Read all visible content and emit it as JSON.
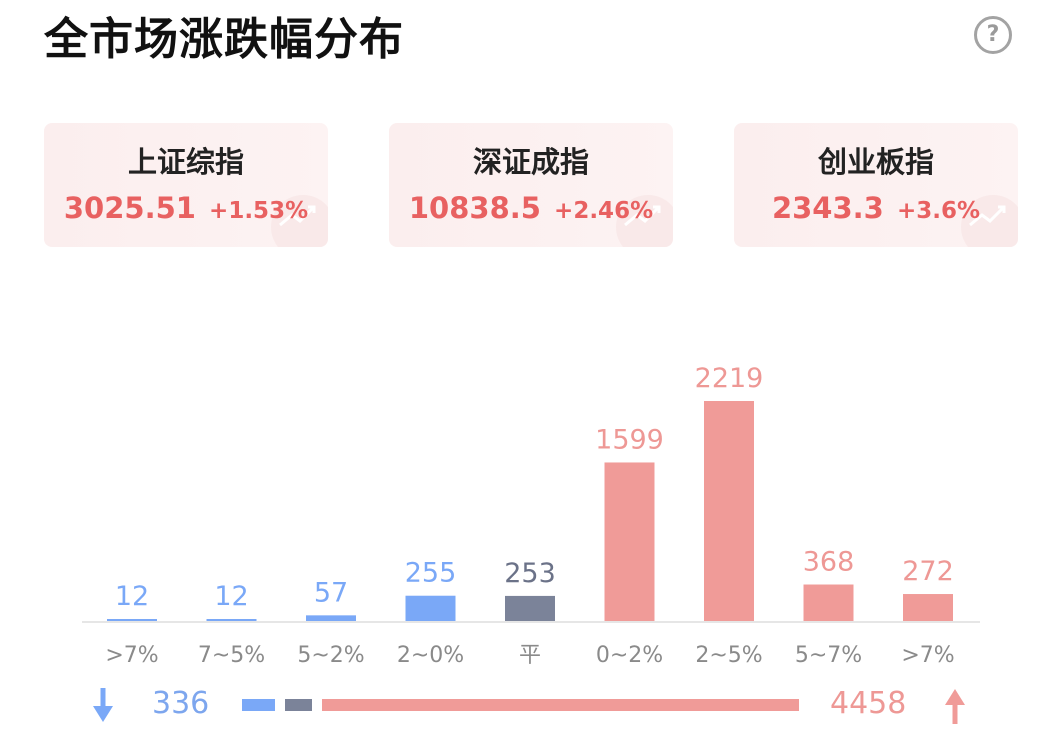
{
  "header": {
    "title": "全市场涨跌幅分布",
    "help_label": "?"
  },
  "indices": [
    {
      "name": "上证综指",
      "value": "3025.51",
      "change": "+1.53%"
    },
    {
      "name": "深证成指",
      "value": "10838.5",
      "change": "+2.46%"
    },
    {
      "name": "创业板指",
      "value": "2343.3",
      "change": "+3.6%"
    }
  ],
  "colors": {
    "down": "#7aa8f7",
    "flat": "#7b8399",
    "up": "#f09b98",
    "up_text": "#e86161"
  },
  "chart_data": {
    "type": "bar",
    "title": "全市场涨跌幅分布",
    "categories": [
      ">7%",
      "7~5%",
      "5~2%",
      "2~0%",
      "平",
      "0~2%",
      "2~5%",
      "5~7%",
      ">7%"
    ],
    "values": [
      12,
      12,
      57,
      255,
      253,
      1599,
      2219,
      368,
      272
    ],
    "groups": [
      "down",
      "down",
      "down",
      "down",
      "flat",
      "up",
      "up",
      "up",
      "up"
    ],
    "xlabel": "",
    "ylabel": "",
    "grid": false
  },
  "summary": {
    "down_total": "336",
    "flat_total": "253",
    "up_total": "4458"
  }
}
